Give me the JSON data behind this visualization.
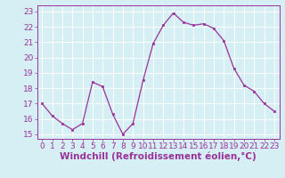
{
  "x": [
    0,
    1,
    2,
    3,
    4,
    5,
    6,
    7,
    8,
    9,
    10,
    11,
    12,
    13,
    14,
    15,
    16,
    17,
    18,
    19,
    20,
    21,
    22,
    23
  ],
  "y": [
    17.0,
    16.2,
    15.7,
    15.3,
    15.7,
    18.4,
    18.1,
    16.3,
    15.0,
    15.7,
    18.5,
    20.9,
    22.1,
    22.9,
    22.3,
    22.1,
    22.2,
    21.9,
    21.1,
    19.3,
    18.2,
    17.8,
    17.0,
    16.5
  ],
  "line_color": "#993399",
  "marker_color": "#993399",
  "bg_color": "#d6eff5",
  "grid_color": "#ffffff",
  "xlabel": "Windchill (Refroidissement éolien,°C)",
  "xlabel_color": "#993399",
  "yticks": [
    15,
    16,
    17,
    18,
    19,
    20,
    21,
    22,
    23
  ],
  "xticks": [
    0,
    1,
    2,
    3,
    4,
    5,
    6,
    7,
    8,
    9,
    10,
    11,
    12,
    13,
    14,
    15,
    16,
    17,
    18,
    19,
    20,
    21,
    22,
    23
  ],
  "ylim": [
    14.7,
    23.4
  ],
  "xlim": [
    -0.5,
    23.5
  ],
  "tick_color": "#993399",
  "tick_fontsize": 6.5,
  "xlabel_fontsize": 7.5
}
